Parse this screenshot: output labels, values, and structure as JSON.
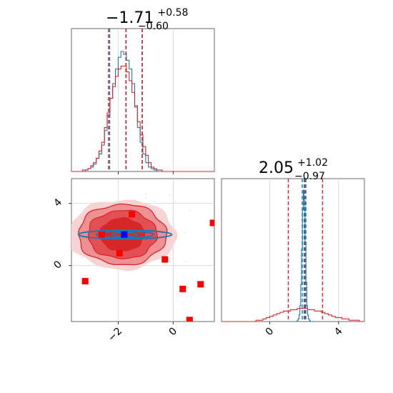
{
  "chart_data": [
    {
      "type": "histogram",
      "panel": "top-left marginal",
      "param_index": 0,
      "title": {
        "median": "−1.71",
        "plus": "+0.58",
        "minus": "−0.60"
      },
      "xlim": [
        -3.7,
        1.5
      ],
      "grid": true,
      "series": [
        {
          "color": "#1f77b4",
          "bin_start": -3.7,
          "bin_width": 0.1,
          "heights": [
            0,
            0,
            0,
            0,
            0,
            1,
            2,
            3,
            5,
            9,
            12,
            18,
            28,
            38,
            50,
            60,
            70,
            78,
            82,
            80,
            76,
            70,
            60,
            45,
            30,
            20,
            12,
            6,
            3,
            2,
            1,
            0,
            0,
            0,
            0,
            0,
            0,
            0,
            0,
            0,
            0,
            0,
            0,
            0,
            0,
            0,
            0,
            0,
            0,
            0,
            0,
            0,
            0
          ],
          "quantiles": [
            -2.31,
            -1.71,
            -1.13
          ]
        },
        {
          "color": "#d62728",
          "bin_start": -3.7,
          "bin_width": 0.1,
          "heights": [
            0,
            0,
            0,
            0,
            1,
            1,
            2,
            4,
            6,
            9,
            14,
            20,
            30,
            40,
            50,
            58,
            65,
            70,
            72,
            72,
            68,
            62,
            54,
            44,
            34,
            25,
            17,
            11,
            6,
            3,
            2,
            1,
            1,
            0,
            0,
            0,
            0,
            0,
            0,
            0,
            0,
            0,
            0,
            0,
            0,
            0,
            0,
            0,
            0,
            0,
            0,
            0,
            0
          ],
          "quantiles": [
            -2.35,
            -1.72,
            -1.12
          ]
        }
      ]
    },
    {
      "type": "histogram",
      "panel": "bottom-right marginal",
      "param_index": 1,
      "title": {
        "median": "2.05",
        "plus": "+1.02",
        "minus": "−0.97"
      },
      "xlim": [
        -2.8,
        5.5
      ],
      "xticks": [
        0,
        4
      ],
      "xtick_labels": [
        "0",
        "4"
      ],
      "grid": true,
      "series": [
        {
          "color": "#1f77b4",
          "bin_start": 1.5,
          "bin_width": 0.05,
          "heights": [
            0,
            0,
            1,
            2,
            5,
            12,
            28,
            55,
            85,
            100,
            92,
            60,
            30,
            12,
            5,
            2,
            1,
            0,
            0,
            0,
            0
          ],
          "quantiles": [
            1.89,
            2.0,
            2.1
          ]
        },
        {
          "color": "#d62728",
          "bin_start": -2.8,
          "bin_width": 0.2,
          "heights": [
            0,
            0,
            0,
            0,
            0,
            0,
            0,
            0,
            0,
            0,
            1,
            1,
            2,
            3,
            4,
            5,
            6,
            7,
            8,
            8,
            9,
            9,
            10,
            10,
            10,
            9,
            9,
            8,
            8,
            7,
            6,
            5,
            4,
            3,
            3,
            2,
            2,
            1,
            1,
            1,
            0,
            0
          ],
          "quantiles": [
            1.08,
            2.05,
            3.07
          ]
        }
      ]
    },
    {
      "type": "scatter",
      "panel": "bottom-left joint",
      "xlim": [
        -3.7,
        1.5
      ],
      "ylim": [
        -3.6,
        5.6
      ],
      "xticks": [
        -2,
        0
      ],
      "xtick_labels": [
        "−2",
        "0"
      ],
      "yticks": [
        0,
        4
      ],
      "ytick_labels": [
        "0",
        "4"
      ],
      "grid": true,
      "red_contours": {
        "center": [
          -1.85,
          2.0
        ],
        "radii_x": [
          0.8,
          1.25,
          1.6,
          1.95
        ],
        "radii_y": [
          1.05,
          1.55,
          1.95,
          2.25
        ],
        "fill_colors": [
          "#d62728",
          "#e35053",
          "#ef9193",
          "#f8d3d4"
        ],
        "line_color": "#d62728"
      },
      "blue_contours": {
        "center": [
          -1.75,
          2.0
        ],
        "radii_x": [
          0.45,
          1.05,
          1.7
        ],
        "radii_y": [
          0.12,
          0.22,
          0.28
        ],
        "line_color": "#1f77b4"
      },
      "red_markers": [
        {
          "x": -1.5,
          "y": 3.3
        },
        {
          "x": -1.95,
          "y": 0.8
        },
        {
          "x": -0.3,
          "y": 0.4
        },
        {
          "x": -2.6,
          "y": 2.0
        },
        {
          "x": -3.2,
          "y": -1.0
        },
        {
          "x": 0.35,
          "y": -1.5
        },
        {
          "x": 1.0,
          "y": -1.2
        },
        {
          "x": 1.45,
          "y": 2.75
        },
        {
          "x": 0.6,
          "y": -3.5
        }
      ],
      "blue_marker": {
        "x": -1.78,
        "y": 2.0
      }
    }
  ]
}
